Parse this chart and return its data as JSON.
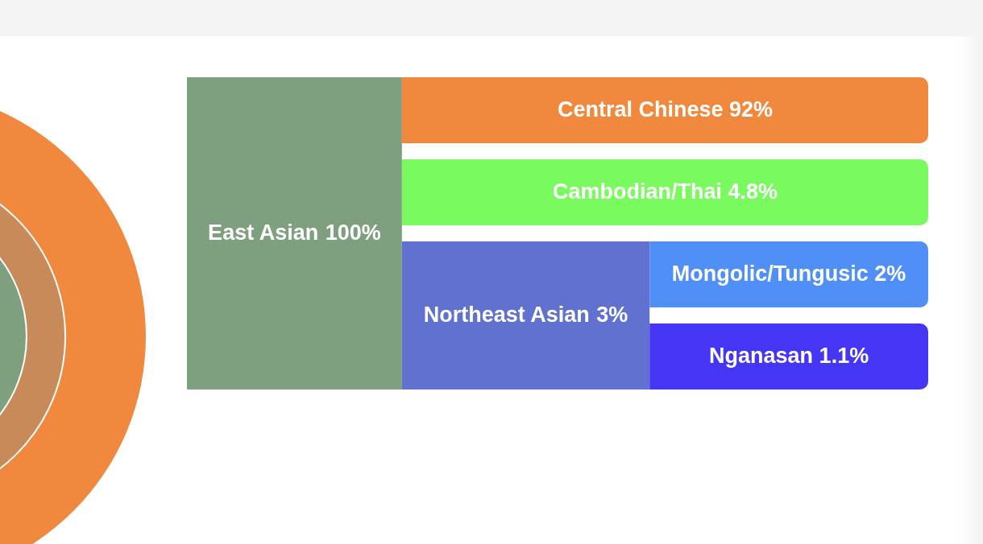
{
  "chart_data": {
    "type": "other",
    "categories": [
      "East Asian",
      "Central Chinese",
      "Cambodian/Thai",
      "Northeast Asian",
      "Mongolic/Tungusic",
      "Nganasan"
    ],
    "values": [
      100,
      92,
      4.8,
      3,
      2,
      1.1
    ],
    "value_labels": [
      "100%",
      "92%",
      "4.8%",
      "3%",
      "2%",
      "1.1%"
    ],
    "colors": [
      "#7fa07e",
      "#f0883e",
      "#79fa5f",
      "#6171cf",
      "#4f8ff6",
      "#4535f5"
    ]
  }
}
